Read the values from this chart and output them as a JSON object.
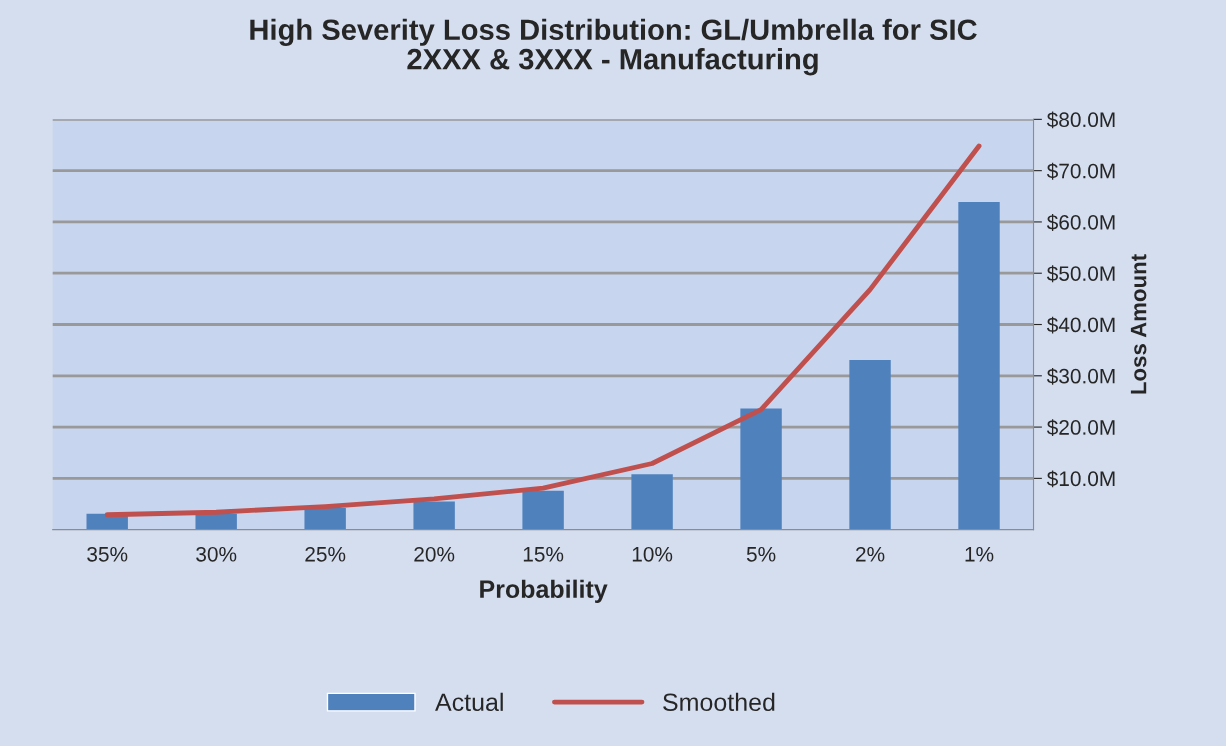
{
  "chart_data": {
    "type": "bar",
    "title": "High Severity Loss Distribution: GL/Umbrella for SIC\n2XXX & 3XXX - Manufacturing",
    "xlabel": "Probability",
    "ylabel": "Loss Amount",
    "categories": [
      "35%",
      "30%",
      "25%",
      "20%",
      "15%",
      "10%",
      "5%",
      "2%",
      "1%"
    ],
    "series": [
      {
        "name": "Actual",
        "color": "#4f81bd",
        "values": [
          3.1,
          3.1,
          4.2,
          5.5,
          7.6,
          10.8,
          23.6,
          33.1,
          63.9
        ]
      },
      {
        "name": "Smoothed",
        "type": "line",
        "color": "#c0504d",
        "values": [
          2.9,
          3.4,
          4.5,
          6.0,
          8.1,
          12.9,
          23.4,
          46.8,
          74.8
        ]
      }
    ],
    "ylim": [
      0,
      80
    ],
    "yticks": [
      {
        "value": 10,
        "label": "$10.0M"
      },
      {
        "value": 20,
        "label": "$20.0M"
      },
      {
        "value": 30,
        "label": "$30.0M"
      },
      {
        "value": 40,
        "label": "$40.0M"
      },
      {
        "value": 50,
        "label": "$50.0M"
      },
      {
        "value": 60,
        "label": "$60.0M"
      },
      {
        "value": 70,
        "label": "$70.0M"
      },
      {
        "value": 80,
        "label": "$80.0M"
      }
    ],
    "grid": "y",
    "legend": "bottom",
    "marker": "none",
    "line_style": "solid"
  }
}
